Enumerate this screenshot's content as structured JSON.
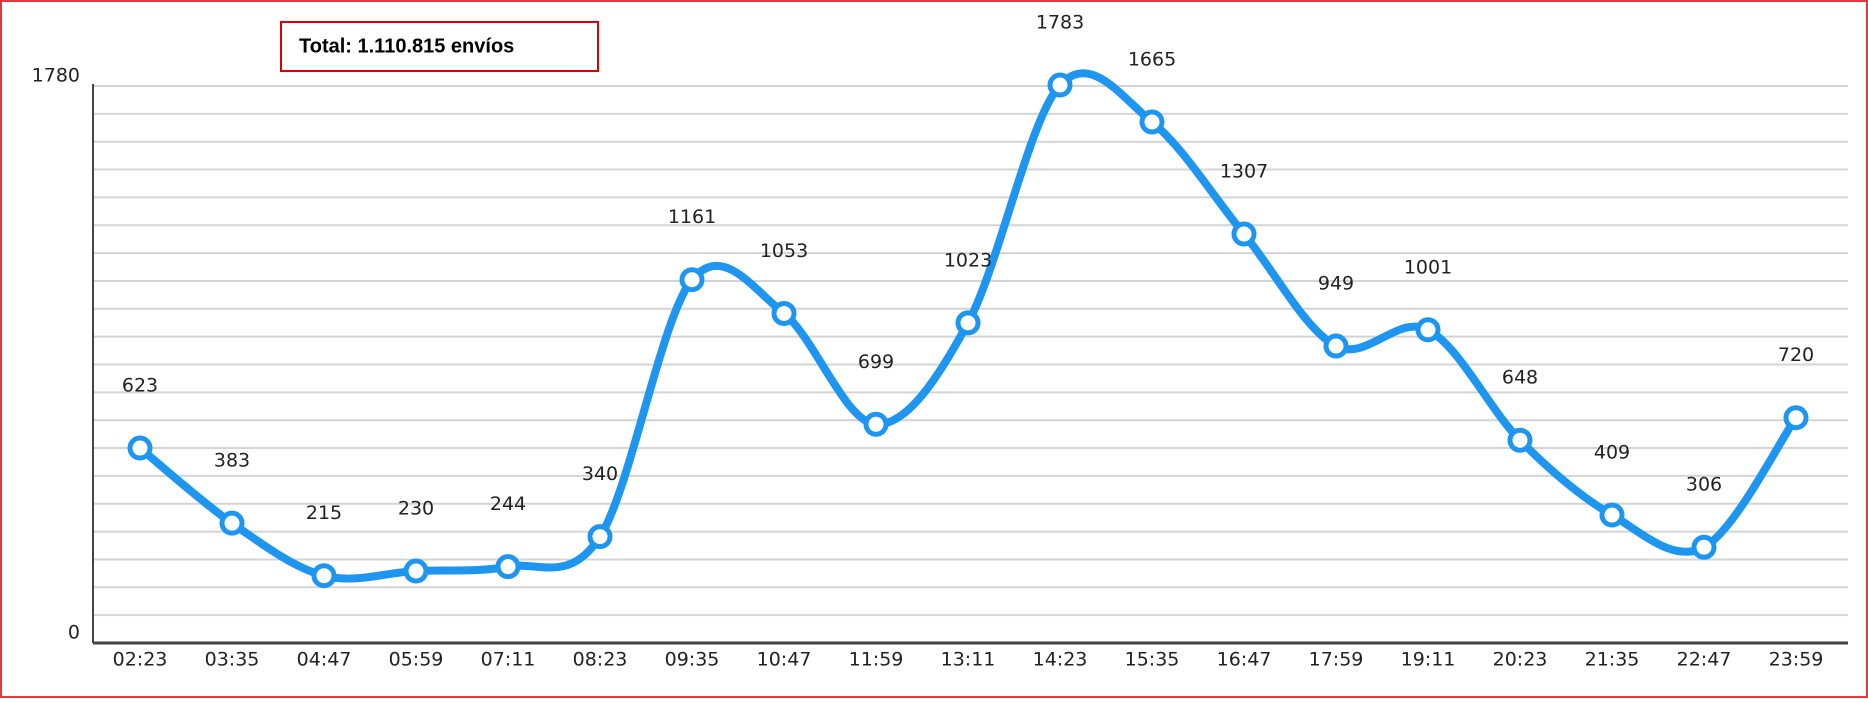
{
  "chart_data": {
    "type": "line",
    "annotation": "Total: 1.110.815 envíos",
    "categories": [
      "02:23",
      "03:35",
      "04:47",
      "05:59",
      "07:11",
      "08:23",
      "09:35",
      "10:47",
      "11:59",
      "13:11",
      "14:23",
      "15:35",
      "16:47",
      "17:59",
      "19:11",
      "20:23",
      "21:35",
      "22:47",
      "23:59"
    ],
    "series": [
      {
        "color": "#1e96f0",
        "values": [
          623,
          383,
          215,
          230,
          244,
          340,
          1161,
          1053,
          699,
          1023,
          1783,
          1665,
          1307,
          949,
          1001,
          648,
          409,
          306,
          720
        ]
      }
    ],
    "ylim": [
      0,
      1780
    ],
    "yticks": [
      0,
      1780
    ],
    "grid": true
  }
}
